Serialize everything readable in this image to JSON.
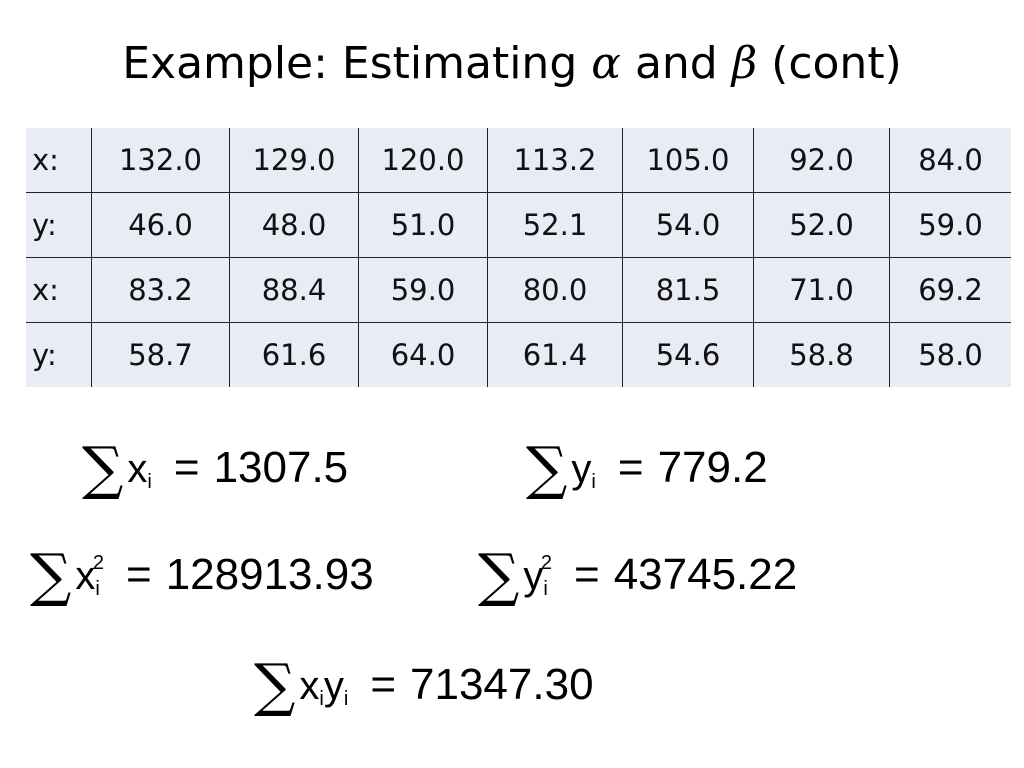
{
  "title": {
    "prefix": "Example: Estimating ",
    "alpha": "α",
    "middle": " and ",
    "beta": "β",
    "suffix": " (cont)"
  },
  "table": {
    "rows": [
      {
        "label": "x:",
        "values": [
          "132.0",
          "129.0",
          "120.0",
          "113.2",
          "105.0",
          "92.0",
          "84.0"
        ]
      },
      {
        "label": "y:",
        "values": [
          "46.0",
          "48.0",
          "51.0",
          "52.1",
          "54.0",
          "52.0",
          "59.0"
        ]
      },
      {
        "label": "x:",
        "values": [
          "83.2",
          "88.4",
          "59.0",
          "80.0",
          "81.5",
          "71.0",
          "69.2"
        ]
      },
      {
        "label": "y:",
        "values": [
          "58.7",
          "61.6",
          "64.0",
          "61.4",
          "54.6",
          "58.8",
          "58.0"
        ]
      }
    ],
    "background": "#e9ebf5"
  },
  "formulas": {
    "sum_symbol": "∑",
    "eq": "=",
    "sum_x": {
      "var": "x",
      "sub": "i",
      "value": "1307.5"
    },
    "sum_y": {
      "var": "y",
      "sub": "i",
      "value": "779.2"
    },
    "sum_x2": {
      "var": "x",
      "sub": "i",
      "sup": "2",
      "value": "128913.93"
    },
    "sum_y2": {
      "var": "y",
      "sub": "i",
      "sup": "2",
      "value": "43745.22"
    },
    "sum_xy": {
      "var1": "x",
      "sub1": "i",
      "var2": "y",
      "sub2": "i",
      "value": "71347.30"
    }
  }
}
